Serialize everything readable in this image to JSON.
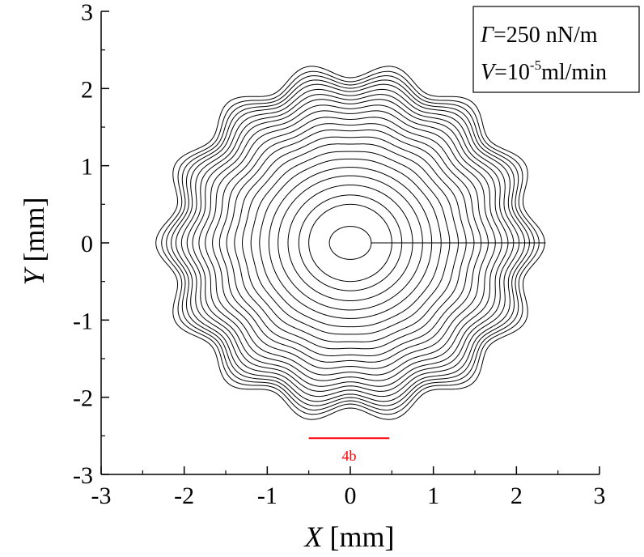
{
  "chart_data": {
    "type": "line",
    "title": "",
    "xlabel": {
      "var": "X",
      "unit": " [mm]"
    },
    "ylabel": {
      "var": "Y",
      "unit": " [mm]"
    },
    "xlim": [
      -3,
      3
    ],
    "ylim": [
      -3,
      3
    ],
    "xticks": [
      -3,
      -2,
      -1,
      0,
      1,
      2,
      3
    ],
    "yticks": [
      -3,
      -2,
      -1,
      0,
      1,
      2,
      3
    ],
    "xtick_labels": [
      "-3",
      "-2",
      "-1",
      "0",
      "1",
      "2",
      "3"
    ],
    "ytick_labels": [
      "-3",
      "-2",
      "-1",
      "0",
      "1",
      "2",
      "3"
    ],
    "grid": false,
    "legend_box": {
      "position": "top-right",
      "line1": {
        "var": "Γ",
        "text": "=250 nN/m"
      },
      "line2": {
        "var": "V",
        "text": "=10",
        "sup": "-5",
        "rest": "ml/min"
      }
    },
    "series_description": "concentric closed front contours growing outward from origin; outer contours develop a 14-lobed fingering perturbation",
    "contours": {
      "radii_mm": [
        0.24,
        0.5,
        0.62,
        0.75,
        0.87,
        0.98,
        1.09,
        1.19,
        1.29,
        1.38,
        1.47,
        1.55,
        1.63,
        1.71,
        1.78,
        1.85,
        1.91,
        1.97,
        2.03,
        2.08,
        2.13,
        2.18,
        2.24
      ],
      "lobes": 14,
      "perturbation_amplitude_ratio": 0.045,
      "inner_ellipse_ratio": 0.85
    },
    "scale_bar": {
      "label": "4b",
      "x_start": -0.5,
      "x_end": 0.47,
      "y": -2.53,
      "color": "#ff0000"
    },
    "colors": {
      "contour": "#000000",
      "axis": "#000000",
      "scale_bar": "#ff0000"
    }
  }
}
